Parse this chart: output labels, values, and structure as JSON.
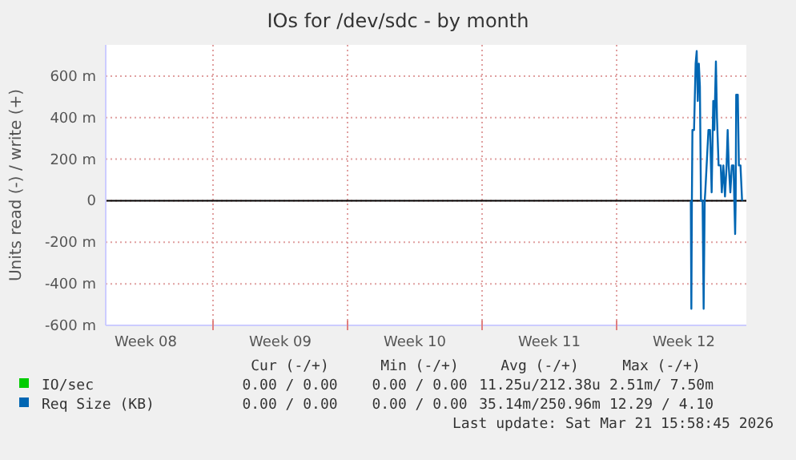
{
  "chart_data": {
    "type": "line",
    "title": "IOs for /dev/sdc - by month",
    "ylabel": "Units read (-) / write (+)",
    "xlim": [
      "2026-02-16T10:00",
      "2026-03-21T18:00"
    ],
    "xticks": [
      {
        "value": "2026-02-18T12:00",
        "label": "Week 08"
      },
      {
        "value": "2026-02-22T00:00",
        "label": null
      },
      {
        "value": "2026-02-25T12:00",
        "label": "Week 09"
      },
      {
        "value": "2026-03-01T00:00",
        "label": null
      },
      {
        "value": "2026-03-04T12:00",
        "label": "Week 10"
      },
      {
        "value": "2026-03-08T00:00",
        "label": null
      },
      {
        "value": "2026-03-11T12:00",
        "label": "Week 11"
      },
      {
        "value": "2026-03-15T00:00",
        "label": null
      },
      {
        "value": "2026-03-18T12:00",
        "label": "Week 12"
      }
    ],
    "ylim": [
      -600,
      750
    ],
    "yticks": [
      {
        "value": -600,
        "label": "-600 m"
      },
      {
        "value": -400,
        "label": "-400 m"
      },
      {
        "value": -200,
        "label": "-200 m"
      },
      0,
      {
        "value": 200,
        "label": "200 m"
      },
      {
        "value": 400,
        "label": "400 m"
      },
      {
        "value": 600,
        "label": "600 m"
      }
    ],
    "grid": true,
    "legend": "bottom",
    "marker": "none",
    "line_style": "solid",
    "ref_lines": [
      {
        "axis": "y",
        "value": 0,
        "color": "#000000"
      }
    ],
    "series": [
      {
        "name": "IO/sec",
        "color": "#00cc00"
      },
      {
        "name": "Req Size (KB)",
        "color": "#0066b3",
        "x": [
          "2026-03-18T20:40",
          "2026-03-18T21:20",
          "2026-03-18T22:00",
          "2026-03-18T22:40",
          "2026-03-19T00:40",
          "2026-03-19T02:40",
          "2026-03-19T04:00",
          "2026-03-19T05:20",
          "2026-03-19T06:40",
          "2026-03-19T08:00",
          "2026-03-19T09:20",
          "2026-03-19T11:20",
          "2026-03-19T12:40",
          "2026-03-19T14:00",
          "2026-03-19T14:40",
          "2026-03-19T18:40",
          "2026-03-19T20:40",
          "2026-03-19T22:40",
          "2026-03-20T00:40",
          "2026-03-20T02:00",
          "2026-03-20T04:00",
          "2026-03-20T05:20",
          "2026-03-20T07:20",
          "2026-03-20T10:00",
          "2026-03-20T11:20",
          "2026-03-20T13:20",
          "2026-03-20T15:20",
          "2026-03-20T17:20",
          "2026-03-20T18:40",
          "2026-03-20T20:00",
          "2026-03-20T22:00",
          "2026-03-21T00:00",
          "2026-03-21T02:00",
          "2026-03-21T03:00",
          "2026-03-21T04:00",
          "2026-03-21T04:40",
          "2026-03-21T05:20",
          "2026-03-21T07:20",
          "2026-03-21T08:40",
          "2026-03-21T10:40",
          "2026-03-21T12:40"
        ],
        "values": [
          0,
          -520,
          0,
          340,
          340,
          660,
          720,
          480,
          660,
          550,
          0,
          0,
          -520,
          0,
          40,
          340,
          340,
          40,
          480,
          340,
          670,
          400,
          170,
          170,
          40,
          170,
          20,
          170,
          340,
          170,
          40,
          170,
          170,
          0,
          -160,
          0,
          510,
          510,
          170,
          170,
          0
        ]
      }
    ],
    "annotations": [
      "Cur (-/+)",
      "Min (-/+)",
      "Avg (-/+)",
      "Max (-/+)",
      "0.00 / 0.00",
      "0.00 / 0.00",
      "11.25u/212.38u",
      "2.51m/ 7.50m",
      "0.00 / 0.00",
      "0.00 / 0.00",
      "35.14m/250.96m",
      "12.29 / 4.10",
      "Last update: Sat Mar 21 15:58:45 2026"
    ]
  }
}
